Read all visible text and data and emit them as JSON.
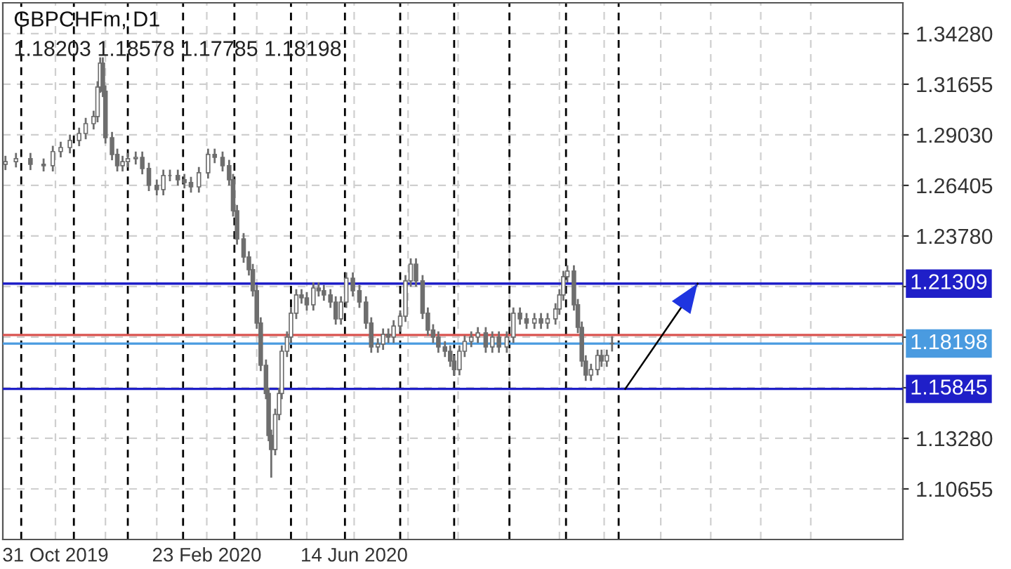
{
  "chart_data": {
    "type": "candlestick",
    "title": "GBPCHFm, D1",
    "subtitle": "1.18203 1.18578 1.17785 1.18198",
    "x": [
      "2019-09-23",
      "2019-10-01",
      "2019-10-12",
      "2019-10-22",
      "2019-10-29",
      "2019-11-04",
      "2019-11-11",
      "2019-11-18",
      "2019-11-23",
      "2019-11-29",
      "2019-12-02",
      "2019-12-04",
      "2019-12-06",
      "2019-12-08",
      "2019-12-13",
      "2019-12-17",
      "2019-12-21",
      "2019-12-25",
      "2019-12-31",
      "2020-01-05",
      "2020-01-10",
      "2020-01-16",
      "2020-01-21",
      "2020-01-26",
      "2020-02-01",
      "2020-02-06",
      "2020-02-11",
      "2020-02-17",
      "2020-02-24",
      "2020-02-29",
      "2020-03-06",
      "2020-03-11",
      "2020-03-14",
      "2020-03-17",
      "2020-03-22",
      "2020-03-26",
      "2020-03-29",
      "2020-04-01",
      "2020-04-04",
      "2020-04-08",
      "2020-04-10",
      "2020-04-12",
      "2020-04-15",
      "2020-04-18",
      "2020-04-20",
      "2020-04-24",
      "2020-04-27",
      "2020-05-01",
      "2020-05-05",
      "2020-05-09",
      "2020-05-14",
      "2020-05-18",
      "2020-05-22",
      "2020-05-27",
      "2020-05-31",
      "2020-06-04",
      "2020-06-08",
      "2020-06-13",
      "2020-06-18",
      "2020-06-23",
      "2020-06-27",
      "2020-07-02",
      "2020-07-06",
      "2020-07-10",
      "2020-07-14",
      "2020-07-19",
      "2020-07-23",
      "2020-07-27",
      "2020-07-31",
      "2020-08-05",
      "2020-08-09",
      "2020-08-13",
      "2020-08-17",
      "2020-08-22",
      "2020-08-26",
      "2020-08-29",
      "2020-09-02",
      "2020-09-06",
      "2020-09-11",
      "2020-09-16",
      "2020-09-22",
      "2020-09-27",
      "2020-10-02",
      "2020-10-08",
      "2020-10-13",
      "2020-10-18",
      "2020-10-23",
      "2020-10-29",
      "2020-11-03",
      "2020-11-08",
      "2020-11-14",
      "2020-11-17",
      "2020-11-20",
      "2020-11-23",
      "2020-11-28",
      "2020-12-01",
      "2020-12-04",
      "2020-12-07",
      "2020-12-11",
      "2020-12-16",
      "2020-12-19",
      "2020-12-23",
      "2020-12-27"
    ],
    "ohlc": [
      [
        1.275,
        1.2794,
        1.272,
        1.2764
      ],
      [
        1.2764,
        1.2809,
        1.2734,
        1.2779
      ],
      [
        1.2779,
        1.2809,
        1.272,
        1.275
      ],
      [
        1.275,
        1.278,
        1.2713,
        1.2743
      ],
      [
        1.2743,
        1.2846,
        1.2713,
        1.2816
      ],
      [
        1.2816,
        1.2867,
        1.2786,
        1.2837
      ],
      [
        1.2837,
        1.2904,
        1.2807,
        1.2874
      ],
      [
        1.2874,
        1.294,
        1.2844,
        1.291
      ],
      [
        1.291,
        1.2991,
        1.288,
        1.2961
      ],
      [
        1.2961,
        1.3028,
        1.2931,
        1.2998
      ],
      [
        1.2998,
        1.3181,
        1.2968,
        1.3151
      ],
      [
        1.3151,
        1.3305,
        1.3121,
        1.3275
      ],
      [
        1.3275,
        1.3305,
        1.3099,
        1.3129
      ],
      [
        1.3129,
        1.3159,
        1.2858,
        1.2888
      ],
      [
        1.2888,
        1.2918,
        1.2771,
        1.2801
      ],
      [
        1.2801,
        1.2831,
        1.2713,
        1.2743
      ],
      [
        1.2743,
        1.2794,
        1.2713,
        1.2764
      ],
      [
        1.2764,
        1.2809,
        1.2734,
        1.2779
      ],
      [
        1.2779,
        1.2816,
        1.2749,
        1.2786
      ],
      [
        1.2786,
        1.2816,
        1.2698,
        1.2728
      ],
      [
        1.2728,
        1.2758,
        1.2611,
        1.2641
      ],
      [
        1.2641,
        1.2671,
        1.2589,
        1.2619
      ],
      [
        1.2619,
        1.2722,
        1.2589,
        1.2692
      ],
      [
        1.2692,
        1.2722,
        1.2662,
        1.2692
      ],
      [
        1.2692,
        1.2722,
        1.264,
        1.267
      ],
      [
        1.267,
        1.27,
        1.2625,
        1.2655
      ],
      [
        1.2655,
        1.2685,
        1.2603,
        1.2633
      ],
      [
        1.2633,
        1.2736,
        1.2603,
        1.2706
      ],
      [
        1.2706,
        1.2831,
        1.2676,
        1.2801
      ],
      [
        1.2801,
        1.2831,
        1.2756,
        1.2786
      ],
      [
        1.2786,
        1.2816,
        1.2713,
        1.2743
      ],
      [
        1.2743,
        1.2773,
        1.264,
        1.267
      ],
      [
        1.267,
        1.27,
        1.2479,
        1.2509
      ],
      [
        1.2509,
        1.2539,
        1.2333,
        1.2363
      ],
      [
        1.2363,
        1.2393,
        1.2239,
        1.2269
      ],
      [
        1.2269,
        1.2299,
        1.2173,
        1.2203
      ],
      [
        1.2203,
        1.2233,
        1.2064,
        1.2094
      ],
      [
        1.2094,
        1.2124,
        1.1896,
        1.1926
      ],
      [
        1.1926,
        1.1956,
        1.1677,
        1.1707
      ],
      [
        1.1707,
        1.1737,
        1.1531,
        1.1561
      ],
      [
        1.1561,
        1.1591,
        1.1313,
        1.1343
      ],
      [
        1.1343,
        1.1373,
        1.1124,
        1.127
      ],
      [
        1.127,
        1.1482,
        1.124,
        1.1452
      ],
      [
        1.1452,
        1.1591,
        1.1422,
        1.1561
      ],
      [
        1.1561,
        1.181,
        1.1531,
        1.178
      ],
      [
        1.178,
        1.1883,
        1.175,
        1.1853
      ],
      [
        1.1853,
        1.2007,
        1.1823,
        1.1977
      ],
      [
        1.1977,
        1.2102,
        1.1947,
        1.2072
      ],
      [
        1.2072,
        1.2102,
        1.2027,
        1.2057
      ],
      [
        1.2057,
        1.2087,
        1.1991,
        1.2021
      ],
      [
        1.2021,
        1.2138,
        1.1991,
        1.2108
      ],
      [
        1.2108,
        1.2138,
        1.2064,
        1.2094
      ],
      [
        1.2094,
        1.2124,
        1.2042,
        1.2072
      ],
      [
        1.2072,
        1.2102,
        1.2005,
        1.2035
      ],
      [
        1.2035,
        1.2065,
        1.1918,
        1.1948
      ],
      [
        1.1948,
        1.2065,
        1.1918,
        1.2035
      ],
      [
        1.2035,
        1.2189,
        1.2005,
        1.2159
      ],
      [
        1.2159,
        1.2189,
        1.2064,
        1.2094
      ],
      [
        1.2094,
        1.2124,
        1.2005,
        1.2035
      ],
      [
        1.2035,
        1.2065,
        1.1896,
        1.1926
      ],
      [
        1.1926,
        1.1956,
        1.1772,
        1.1802
      ],
      [
        1.1802,
        1.1847,
        1.1772,
        1.1817
      ],
      [
        1.1817,
        1.1898,
        1.1787,
        1.1868
      ],
      [
        1.1868,
        1.1898,
        1.1823,
        1.1853
      ],
      [
        1.1853,
        1.1941,
        1.1823,
        1.1911
      ],
      [
        1.1911,
        1.1992,
        1.1881,
        1.1962
      ],
      [
        1.1962,
        1.2175,
        1.1932,
        1.2145
      ],
      [
        1.2145,
        1.2262,
        1.2115,
        1.2232
      ],
      [
        1.2232,
        1.2262,
        1.2115,
        1.2145
      ],
      [
        1.2145,
        1.2175,
        1.1947,
        1.1977
      ],
      [
        1.1977,
        1.2007,
        1.186,
        1.189
      ],
      [
        1.189,
        1.192,
        1.1823,
        1.1853
      ],
      [
        1.1853,
        1.1883,
        1.1772,
        1.1802
      ],
      [
        1.1802,
        1.1832,
        1.175,
        1.178
      ],
      [
        1.178,
        1.181,
        1.1699,
        1.1729
      ],
      [
        1.1729,
        1.1759,
        1.1655,
        1.1685
      ],
      [
        1.1685,
        1.181,
        1.1655,
        1.178
      ],
      [
        1.178,
        1.1861,
        1.175,
        1.1831
      ],
      [
        1.1831,
        1.1883,
        1.1801,
        1.1853
      ],
      [
        1.1853,
        1.1905,
        1.1823,
        1.1875
      ],
      [
        1.1875,
        1.1905,
        1.1772,
        1.1802
      ],
      [
        1.1802,
        1.1883,
        1.1772,
        1.1853
      ],
      [
        1.1853,
        1.1883,
        1.1772,
        1.1802
      ],
      [
        1.1802,
        1.1883,
        1.1772,
        1.1853
      ],
      [
        1.1853,
        1.2007,
        1.1823,
        1.1977
      ],
      [
        1.1977,
        1.2007,
        1.1918,
        1.1948
      ],
      [
        1.1948,
        1.1978,
        1.1896,
        1.1926
      ],
      [
        1.1926,
        1.1978,
        1.1896,
        1.1948
      ],
      [
        1.1948,
        1.1978,
        1.1896,
        1.1926
      ],
      [
        1.1926,
        1.1978,
        1.1896,
        1.1948
      ],
      [
        1.1948,
        1.2029,
        1.1918,
        1.1999
      ],
      [
        1.1999,
        1.2102,
        1.1969,
        1.2072
      ],
      [
        1.2072,
        1.2197,
        1.2042,
        1.2167
      ],
      [
        1.2167,
        1.2226,
        1.2137,
        1.2196
      ],
      [
        1.2196,
        1.2226,
        1.1991,
        1.2021
      ],
      [
        1.2021,
        1.2051,
        1.1874,
        1.1904
      ],
      [
        1.1904,
        1.1934,
        1.1699,
        1.1729
      ],
      [
        1.1729,
        1.1759,
        1.1626,
        1.1656
      ],
      [
        1.1656,
        1.1715,
        1.1626,
        1.1685
      ],
      [
        1.1685,
        1.1788,
        1.1655,
        1.1758
      ],
      [
        1.1758,
        1.1788,
        1.1699,
        1.1729
      ],
      [
        1.1729,
        1.1788,
        1.1699,
        1.1758
      ],
      [
        1.18203,
        1.18578,
        1.17785,
        1.18198
      ]
    ],
    "color": "#6e6e6e",
    "series": [
      {
        "type": "line",
        "x": [
          "2021-01-06",
          "2021-03-02"
        ],
        "values": [
          1.15845,
          1.21309
        ],
        "color": "#000000"
      }
    ],
    "xlim": [
      "2019-09-21",
      "2021-08-05"
    ],
    "xticks": [
      {
        "value": "2019-10-31",
        "label": "31 Oct 2019"
      },
      {
        "value": "2019-12-08",
        "label": null
      },
      {
        "value": "2020-01-16",
        "label": null
      },
      {
        "value": "2020-02-23",
        "label": "23 Feb 2020"
      },
      {
        "value": "2020-04-01",
        "label": null
      },
      {
        "value": "2020-05-09",
        "label": null
      },
      {
        "value": "2020-06-14",
        "label": "14 Jun 2020"
      },
      {
        "value": "2020-07-25",
        "label": null
      },
      {
        "value": "2020-09-01",
        "label": null
      },
      {
        "value": "2020-10-10",
        "label": null
      },
      {
        "value": "2020-11-17",
        "label": null
      },
      {
        "value": "2020-12-21",
        "label": null
      },
      {
        "value": "2021-02-02",
        "label": null
      },
      {
        "value": "2021-03-12",
        "label": null
      },
      {
        "value": "2021-04-19",
        "label": null
      },
      {
        "value": "2021-05-27",
        "label": null
      }
    ],
    "ylim": [
      1.0803,
      1.3588
    ],
    "yticks": [
      {
        "value": 1.10655,
        "label": "1.10655"
      },
      {
        "value": 1.1328,
        "label": "1.13280"
      },
      {
        "value": 1.15905,
        "label": null
      },
      {
        "value": 1.1853,
        "label": null
      },
      {
        "value": 1.21155,
        "label": null
      },
      {
        "value": 1.2378,
        "label": "1.23780"
      },
      {
        "value": 1.26405,
        "label": "1.26405"
      },
      {
        "value": 1.2903,
        "label": "1.29030"
      },
      {
        "value": 1.31655,
        "label": "1.31655"
      },
      {
        "value": 1.3428,
        "label": "1.34280"
      }
    ],
    "ref_lines": [
      {
        "axis": "x",
        "value": "2019-10-05",
        "color": "#000000",
        "line_style": "dashed"
      },
      {
        "axis": "x",
        "value": "2019-11-14",
        "color": "#000000",
        "line_style": "dashed"
      },
      {
        "axis": "x",
        "value": "2019-12-25",
        "color": "#000000",
        "line_style": "dashed"
      },
      {
        "axis": "x",
        "value": "2020-02-05",
        "color": "#000000",
        "line_style": "dashed"
      },
      {
        "axis": "x",
        "value": "2020-03-15",
        "color": "#000000",
        "line_style": "dashed"
      },
      {
        "axis": "x",
        "value": "2020-04-27",
        "color": "#000000",
        "line_style": "dashed"
      },
      {
        "axis": "x",
        "value": "2020-06-07",
        "color": "#000000",
        "line_style": "dashed"
      },
      {
        "axis": "x",
        "value": "2020-07-19",
        "color": "#000000",
        "line_style": "dashed"
      },
      {
        "axis": "x",
        "value": "2020-08-29",
        "color": "#000000",
        "line_style": "dashed"
      },
      {
        "axis": "x",
        "value": "2020-10-10",
        "color": "#000000",
        "line_style": "dashed"
      },
      {
        "axis": "x",
        "value": "2020-11-22",
        "color": "#000000",
        "line_style": "dashed"
      },
      {
        "axis": "x",
        "value": "2021-01-01",
        "color": "#000000",
        "line_style": "dashed"
      },
      {
        "axis": "y",
        "value": 1.21309,
        "label": "1.21309",
        "color": "#1f1fc8",
        "line_style": "solid"
      },
      {
        "axis": "y",
        "value": 1.1864,
        "color": "#d9534f",
        "line_style": "solid"
      },
      {
        "axis": "y",
        "value": 1.18198,
        "label": "1.18198",
        "color": "#4a9be0",
        "line_style": "solid"
      },
      {
        "axis": "y",
        "value": 1.15845,
        "label": "1.15845",
        "color": "#1f1fc8",
        "line_style": "solid"
      }
    ],
    "grid": true
  }
}
